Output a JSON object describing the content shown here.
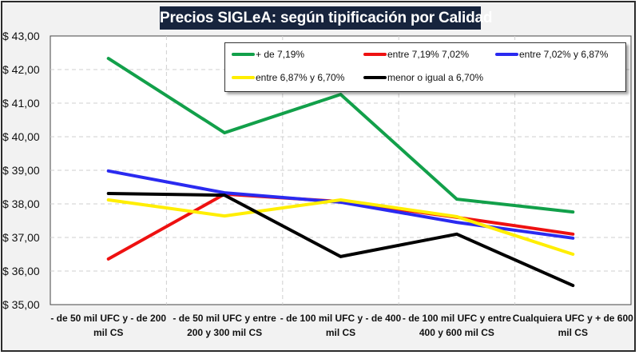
{
  "chart_data": {
    "type": "line",
    "title": "Precios SIGLeA: según tipificación por Calidad",
    "xlabel": "",
    "ylabel": "",
    "ylim": [
      35,
      43
    ],
    "yticks": [
      35,
      36,
      37,
      38,
      39,
      40,
      41,
      42,
      43
    ],
    "ytick_labels": [
      "$ 35,00",
      "$ 36,00",
      "$ 37,00",
      "$ 38,00",
      "$ 39,00",
      "$ 40,00",
      "$ 41,00",
      "$ 42,00",
      "$ 43,00"
    ],
    "grid": true,
    "legend_position": "top-right",
    "categories": [
      [
        "- de 50 mil UFC y - de 200",
        "mil CS"
      ],
      [
        "- de 50 mil UFC y entre",
        "200 y 300 mil CS"
      ],
      [
        "- de 100 mil UFC y - de 400",
        "mil CS"
      ],
      [
        "- de 100 mil UFC y entre",
        "400 y 600 mil CS"
      ],
      [
        "Cualquiera UFC y + de 600",
        "mil CS"
      ]
    ],
    "series": [
      {
        "name": "+ de 7,19%",
        "color": "#12a04a",
        "values": [
          42.33,
          40.12,
          41.26,
          38.14,
          37.76
        ]
      },
      {
        "name": "entre 7,19% 7,02%",
        "color": "#ee1111",
        "values": [
          36.36,
          38.29,
          38.07,
          37.6,
          37.1
        ]
      },
      {
        "name": "entre 7,02% y 6,87%",
        "color": "#2a2af0",
        "values": [
          38.98,
          38.33,
          38.05,
          37.45,
          36.98
        ]
      },
      {
        "name": "entre 6,87% y 6,70%",
        "color": "#ffee00",
        "values": [
          38.12,
          37.64,
          38.12,
          37.62,
          36.5
        ]
      },
      {
        "name": "menor o igual a 6,70%",
        "color": "#000000",
        "values": [
          38.31,
          38.26,
          36.43,
          37.1,
          35.57
        ]
      }
    ]
  }
}
